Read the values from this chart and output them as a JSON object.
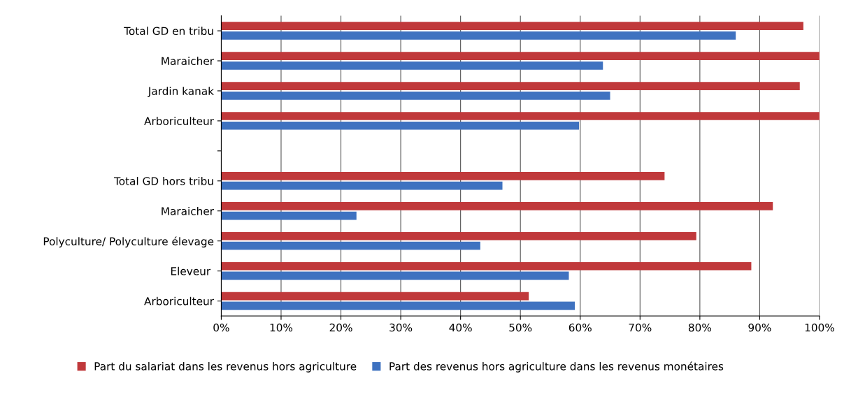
{
  "chart_data": {
    "type": "bar",
    "orientation": "horizontal",
    "categories": [
      "Total GD en tribu",
      "Maraicher",
      "Jardin kanak",
      "Arboriculteur",
      null,
      "Total GD hors tribu",
      "Maraicher",
      "Polyculture/ Polyculture élevage",
      "Eleveur ",
      "Arboriculteur"
    ],
    "series": [
      {
        "name": "Part du salariat dans les revenus hors agriculture",
        "color": "#c0393b",
        "values": [
          97.3,
          100,
          96.7,
          100,
          null,
          74.1,
          92.2,
          79.4,
          88.6,
          51.4
        ]
      },
      {
        "name": "Part des revenus hors agriculture dans les revenus monétaires",
        "color": "#3f72c0",
        "values": [
          86,
          63.8,
          65,
          59.8,
          null,
          47,
          22.6,
          43.3,
          58.1,
          59.1
        ]
      }
    ],
    "xlim": [
      0,
      100
    ],
    "xticks": [
      {
        "value": 0,
        "label": "0%"
      },
      {
        "value": 10,
        "label": "10%"
      },
      {
        "value": 20,
        "label": "20%"
      },
      {
        "value": 30,
        "label": "30%"
      },
      {
        "value": 40,
        "label": "40%"
      },
      {
        "value": 50,
        "label": "50%"
      },
      {
        "value": 60,
        "label": "60%"
      },
      {
        "value": 70,
        "label": "70%"
      },
      {
        "value": 80,
        "label": "80%"
      },
      {
        "value": 90,
        "label": "90%"
      },
      {
        "value": 100,
        "label": "100%"
      }
    ],
    "grid": "x",
    "legend": "bottom"
  }
}
